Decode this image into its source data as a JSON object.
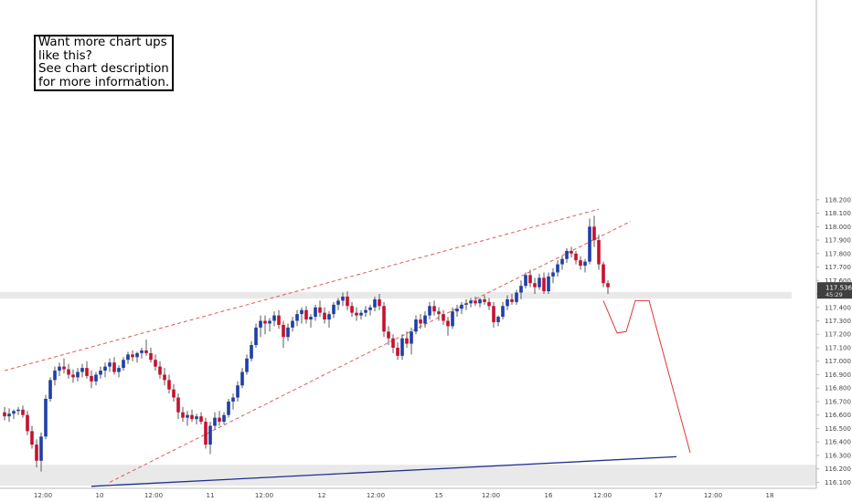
{
  "note": {
    "lines": [
      "Want more chart ups",
      "like this?",
      "See chart description",
      "for more information."
    ]
  },
  "colors": {
    "up": "#1e3fa8",
    "down": "#c8102e",
    "wick": "#5a5a5a",
    "channel": "#e05a5a",
    "projection": "#e0353a",
    "trendline": "#1f2e8f",
    "zone": "#e9e9e9",
    "last_price_bg": "#3f3f3f"
  },
  "chart_data": {
    "type": "candlestick",
    "y_axis": {
      "range": [
        116.05,
        118.25
      ],
      "ticks": [
        "116.100",
        "116.200",
        "116.300",
        "116.400",
        "116.500",
        "116.600",
        "116.700",
        "116.800",
        "116.900",
        "117.000",
        "117.100",
        "117.200",
        "117.300",
        "117.400",
        "117.500",
        "117.600",
        "117.700",
        "117.800",
        "117.900",
        "118.000",
        "118.100",
        "118.200"
      ]
    },
    "x_axis": {
      "ticks": [
        "12:00",
        "10",
        "12:00",
        "11",
        "12:00",
        "12",
        "12:00",
        "15",
        "12:00",
        "16",
        "12:00",
        "17",
        "12:00",
        "18"
      ]
    },
    "last_price": {
      "value": "117.536",
      "countdown": "45:29"
    },
    "zones": [
      [
        117.465,
        117.515
      ],
      [
        116.075,
        116.23
      ]
    ],
    "candles": [
      [
        116.62,
        116.66,
        116.56,
        116.59
      ],
      [
        116.59,
        116.65,
        116.55,
        116.61
      ],
      [
        116.61,
        116.64,
        116.57,
        116.63
      ],
      [
        116.63,
        116.66,
        116.6,
        116.64
      ],
      [
        116.64,
        116.67,
        116.58,
        116.6
      ],
      [
        116.6,
        116.63,
        116.45,
        116.48
      ],
      [
        116.48,
        116.52,
        116.35,
        116.38
      ],
      [
        116.38,
        116.42,
        116.21,
        116.26
      ],
      [
        116.26,
        116.47,
        116.18,
        116.44
      ],
      [
        116.44,
        116.75,
        116.42,
        116.72
      ],
      [
        116.72,
        116.88,
        116.7,
        116.86
      ],
      [
        116.86,
        116.96,
        116.82,
        116.93
      ],
      [
        116.93,
        116.99,
        116.89,
        116.96
      ],
      [
        116.96,
        117.02,
        116.91,
        116.94
      ],
      [
        116.94,
        116.98,
        116.87,
        116.9
      ],
      [
        116.9,
        116.94,
        116.84,
        116.88
      ],
      [
        116.88,
        116.95,
        116.85,
        116.92
      ],
      [
        116.92,
        116.98,
        116.88,
        116.95
      ],
      [
        116.95,
        117.0,
        116.87,
        116.89
      ],
      [
        116.89,
        116.93,
        116.8,
        116.85
      ],
      [
        116.85,
        116.92,
        116.82,
        116.9
      ],
      [
        116.9,
        116.96,
        116.87,
        116.93
      ],
      [
        116.93,
        116.99,
        116.88,
        116.96
      ],
      [
        116.96,
        117.02,
        116.92,
        116.99
      ],
      [
        116.99,
        117.03,
        116.9,
        116.92
      ],
      [
        116.92,
        116.97,
        116.88,
        116.95
      ],
      [
        116.95,
        117.03,
        116.93,
        117.01
      ],
      [
        117.01,
        117.07,
        116.98,
        117.05
      ],
      [
        117.05,
        117.08,
        117.0,
        117.03
      ],
      [
        117.03,
        117.07,
        116.99,
        117.06
      ],
      [
        117.06,
        117.1,
        117.02,
        117.08
      ],
      [
        117.08,
        117.16,
        117.04,
        117.06
      ],
      [
        117.06,
        117.1,
        116.99,
        117.01
      ],
      [
        117.01,
        117.05,
        116.93,
        116.96
      ],
      [
        116.96,
        117.0,
        116.87,
        116.9
      ],
      [
        116.9,
        116.95,
        116.82,
        116.86
      ],
      [
        116.86,
        116.9,
        116.76,
        116.79
      ],
      [
        116.79,
        116.83,
        116.7,
        116.73
      ],
      [
        116.73,
        116.76,
        116.57,
        116.62
      ],
      [
        116.62,
        116.66,
        116.55,
        116.58
      ],
      [
        116.58,
        116.63,
        116.52,
        116.6
      ],
      [
        116.6,
        116.64,
        116.55,
        116.57
      ],
      [
        116.57,
        116.61,
        116.53,
        116.59
      ],
      [
        116.59,
        116.62,
        116.53,
        116.55
      ],
      [
        116.55,
        116.58,
        116.35,
        116.38
      ],
      [
        116.38,
        116.55,
        116.31,
        116.52
      ],
      [
        116.52,
        116.62,
        116.49,
        116.58
      ],
      [
        116.58,
        116.63,
        116.52,
        116.55
      ],
      [
        116.55,
        116.62,
        116.53,
        116.6
      ],
      [
        116.6,
        116.72,
        116.58,
        116.7
      ],
      [
        116.7,
        116.76,
        116.64,
        116.73
      ],
      [
        116.73,
        116.85,
        116.7,
        116.82
      ],
      [
        116.82,
        116.95,
        116.8,
        116.92
      ],
      [
        116.92,
        117.05,
        116.9,
        117.02
      ],
      [
        117.02,
        117.15,
        117.0,
        117.12
      ],
      [
        117.12,
        117.28,
        117.1,
        117.25
      ],
      [
        117.25,
        117.34,
        117.18,
        117.3
      ],
      [
        117.3,
        117.34,
        117.2,
        117.28
      ],
      [
        117.28,
        117.32,
        117.22,
        117.3
      ],
      [
        117.3,
        117.37,
        117.26,
        117.34
      ],
      [
        117.34,
        117.38,
        117.24,
        117.27
      ],
      [
        117.27,
        117.3,
        117.1,
        117.18
      ],
      [
        117.18,
        117.28,
        117.15,
        117.25
      ],
      [
        117.25,
        117.33,
        117.22,
        117.3
      ],
      [
        117.3,
        117.38,
        117.26,
        117.35
      ],
      [
        117.35,
        117.4,
        117.28,
        117.38
      ],
      [
        117.38,
        117.41,
        117.28,
        117.31
      ],
      [
        117.31,
        117.35,
        117.25,
        117.33
      ],
      [
        117.33,
        117.42,
        117.3,
        117.4
      ],
      [
        117.4,
        117.45,
        117.33,
        117.36
      ],
      [
        117.36,
        117.4,
        117.28,
        117.31
      ],
      [
        117.31,
        117.37,
        117.25,
        117.35
      ],
      [
        117.35,
        117.44,
        117.32,
        117.42
      ],
      [
        117.42,
        117.47,
        117.38,
        117.45
      ],
      [
        117.45,
        117.51,
        117.41,
        117.48
      ],
      [
        117.48,
        117.52,
        117.38,
        117.41
      ],
      [
        117.41,
        117.44,
        117.33,
        117.36
      ],
      [
        117.36,
        117.4,
        117.3,
        117.34
      ],
      [
        117.34,
        117.38,
        117.31,
        117.36
      ],
      [
        117.36,
        117.41,
        117.33,
        117.38
      ],
      [
        117.38,
        117.42,
        117.34,
        117.4
      ],
      [
        117.4,
        117.48,
        117.37,
        117.46
      ],
      [
        117.46,
        117.5,
        117.38,
        117.41
      ],
      [
        117.41,
        117.44,
        117.18,
        117.22
      ],
      [
        117.22,
        117.26,
        117.12,
        117.17
      ],
      [
        117.17,
        117.2,
        117.06,
        117.1
      ],
      [
        117.1,
        117.14,
        117.01,
        117.04
      ],
      [
        117.04,
        117.2,
        117.01,
        117.17
      ],
      [
        117.17,
        117.22,
        117.1,
        117.13
      ],
      [
        117.13,
        117.25,
        117.05,
        117.22
      ],
      [
        117.22,
        117.34,
        117.2,
        117.31
      ],
      [
        117.31,
        117.35,
        117.24,
        117.28
      ],
      [
        117.28,
        117.37,
        117.25,
        117.34
      ],
      [
        117.34,
        117.44,
        117.31,
        117.41
      ],
      [
        117.41,
        117.45,
        117.34,
        117.37
      ],
      [
        117.37,
        117.4,
        117.3,
        117.35
      ],
      [
        117.35,
        117.38,
        117.27,
        117.3
      ],
      [
        117.3,
        117.33,
        117.19,
        117.26
      ],
      [
        117.26,
        117.4,
        117.24,
        117.37
      ],
      [
        117.37,
        117.42,
        117.33,
        117.39
      ],
      [
        117.39,
        117.44,
        117.35,
        117.42
      ],
      [
        117.42,
        117.46,
        117.38,
        117.43
      ],
      [
        117.43,
        117.47,
        117.4,
        117.45
      ],
      [
        117.45,
        117.48,
        117.41,
        117.43
      ],
      [
        117.43,
        117.47,
        117.4,
        117.46
      ],
      [
        117.46,
        117.49,
        117.42,
        117.44
      ],
      [
        117.44,
        117.47,
        117.38,
        117.41
      ],
      [
        117.41,
        117.44,
        117.25,
        117.29
      ],
      [
        117.29,
        117.34,
        117.26,
        117.33
      ],
      [
        117.33,
        117.44,
        117.31,
        117.41
      ],
      [
        117.41,
        117.49,
        117.38,
        117.46
      ],
      [
        117.46,
        117.5,
        117.42,
        117.44
      ],
      [
        117.44,
        117.53,
        117.42,
        117.51
      ],
      [
        117.51,
        117.6,
        117.46,
        117.56
      ],
      [
        117.56,
        117.66,
        117.54,
        117.64
      ],
      [
        117.64,
        117.68,
        117.55,
        117.58
      ],
      [
        117.58,
        117.62,
        117.5,
        117.55
      ],
      [
        117.55,
        117.65,
        117.53,
        117.62
      ],
      [
        117.62,
        117.66,
        117.5,
        117.52
      ],
      [
        117.52,
        117.66,
        117.5,
        117.63
      ],
      [
        117.63,
        117.69,
        117.58,
        117.66
      ],
      [
        117.66,
        117.75,
        117.63,
        117.72
      ],
      [
        117.72,
        117.78,
        117.68,
        117.76
      ],
      [
        117.76,
        117.84,
        117.73,
        117.82
      ],
      [
        117.82,
        117.85,
        117.77,
        117.8
      ],
      [
        117.8,
        117.82,
        117.72,
        117.75
      ],
      [
        117.75,
        117.78,
        117.68,
        117.71
      ],
      [
        117.71,
        117.76,
        117.66,
        117.74
      ],
      [
        117.74,
        118.06,
        117.72,
        118.0
      ],
      [
        118.0,
        118.08,
        117.85,
        117.9
      ],
      [
        117.9,
        117.94,
        117.68,
        117.72
      ],
      [
        117.72,
        117.74,
        117.55,
        117.58
      ],
      [
        117.58,
        117.6,
        117.5,
        117.55
      ]
    ],
    "channel_lines": [
      {
        "x_idx": [
          0,
          130
        ],
        "y": [
          116.93,
          118.13
        ]
      },
      {
        "x_idx": [
          23,
          137
        ],
        "y": [
          116.1,
          118.04
        ]
      }
    ],
    "trendline": {
      "x_idx": [
        19,
        147
      ],
      "y": [
        116.07,
        116.29
      ]
    },
    "projection_path": {
      "x_idx": [
        131,
        134,
        136,
        138,
        139,
        141,
        150
      ],
      "y": [
        117.45,
        117.21,
        117.22,
        117.45,
        117.45,
        117.45,
        116.32
      ]
    }
  }
}
